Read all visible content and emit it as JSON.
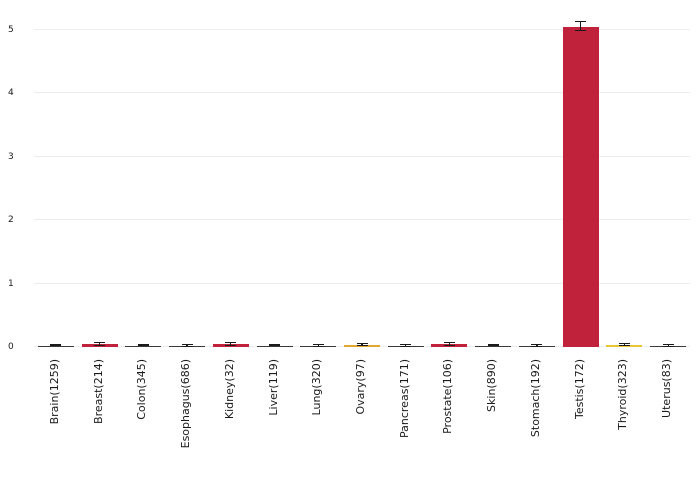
{
  "chart_data": {
    "type": "bar",
    "title": "",
    "xlabel": "",
    "ylabel": "",
    "categories": [
      "Brain(1259)",
      "Breast(214)",
      "Colon(345)",
      "Esophagus(686)",
      "Kidney(32)",
      "Liver(119)",
      "Lung(320)",
      "Ovary(97)",
      "Pancreas(171)",
      "Prostate(106)",
      "Skin(890)",
      "Stomach(192)",
      "Testis(172)",
      "Thyroid(323)",
      "Uterus(83)"
    ],
    "values": [
      0.02,
      0.04,
      0.02,
      0.015,
      0.04,
      0.02,
      0.015,
      0.03,
      0.015,
      0.04,
      0.02,
      0.015,
      5.05,
      0.03,
      0.015
    ],
    "errors": [
      0.01,
      0.02,
      0.01,
      0.01,
      0.02,
      0.01,
      0.01,
      0.015,
      0.01,
      0.02,
      0.01,
      0.01,
      0.07,
      0.015,
      0.01
    ],
    "bar_colors": [
      "#3a3a3a",
      "#c0223b",
      "#3a3a3a",
      "#3a3a3a",
      "#c0223b",
      "#3a3a3a",
      "#3a3a3a",
      "#e2a72e",
      "#3a3a3a",
      "#c0223b",
      "#3a3a3a",
      "#3a3a3a",
      "#c0223b",
      "#e8c832",
      "#3a3a3a"
    ],
    "ylim": [
      0,
      5.25
    ],
    "yticks": [
      0,
      1,
      2,
      3,
      4,
      5
    ],
    "grid": "horizontal",
    "legend": "none",
    "background": "#ffffff",
    "gridline_color": "#ededed",
    "errorbar_color": "#1a1a1a",
    "accent_color": "#c0223b"
  }
}
